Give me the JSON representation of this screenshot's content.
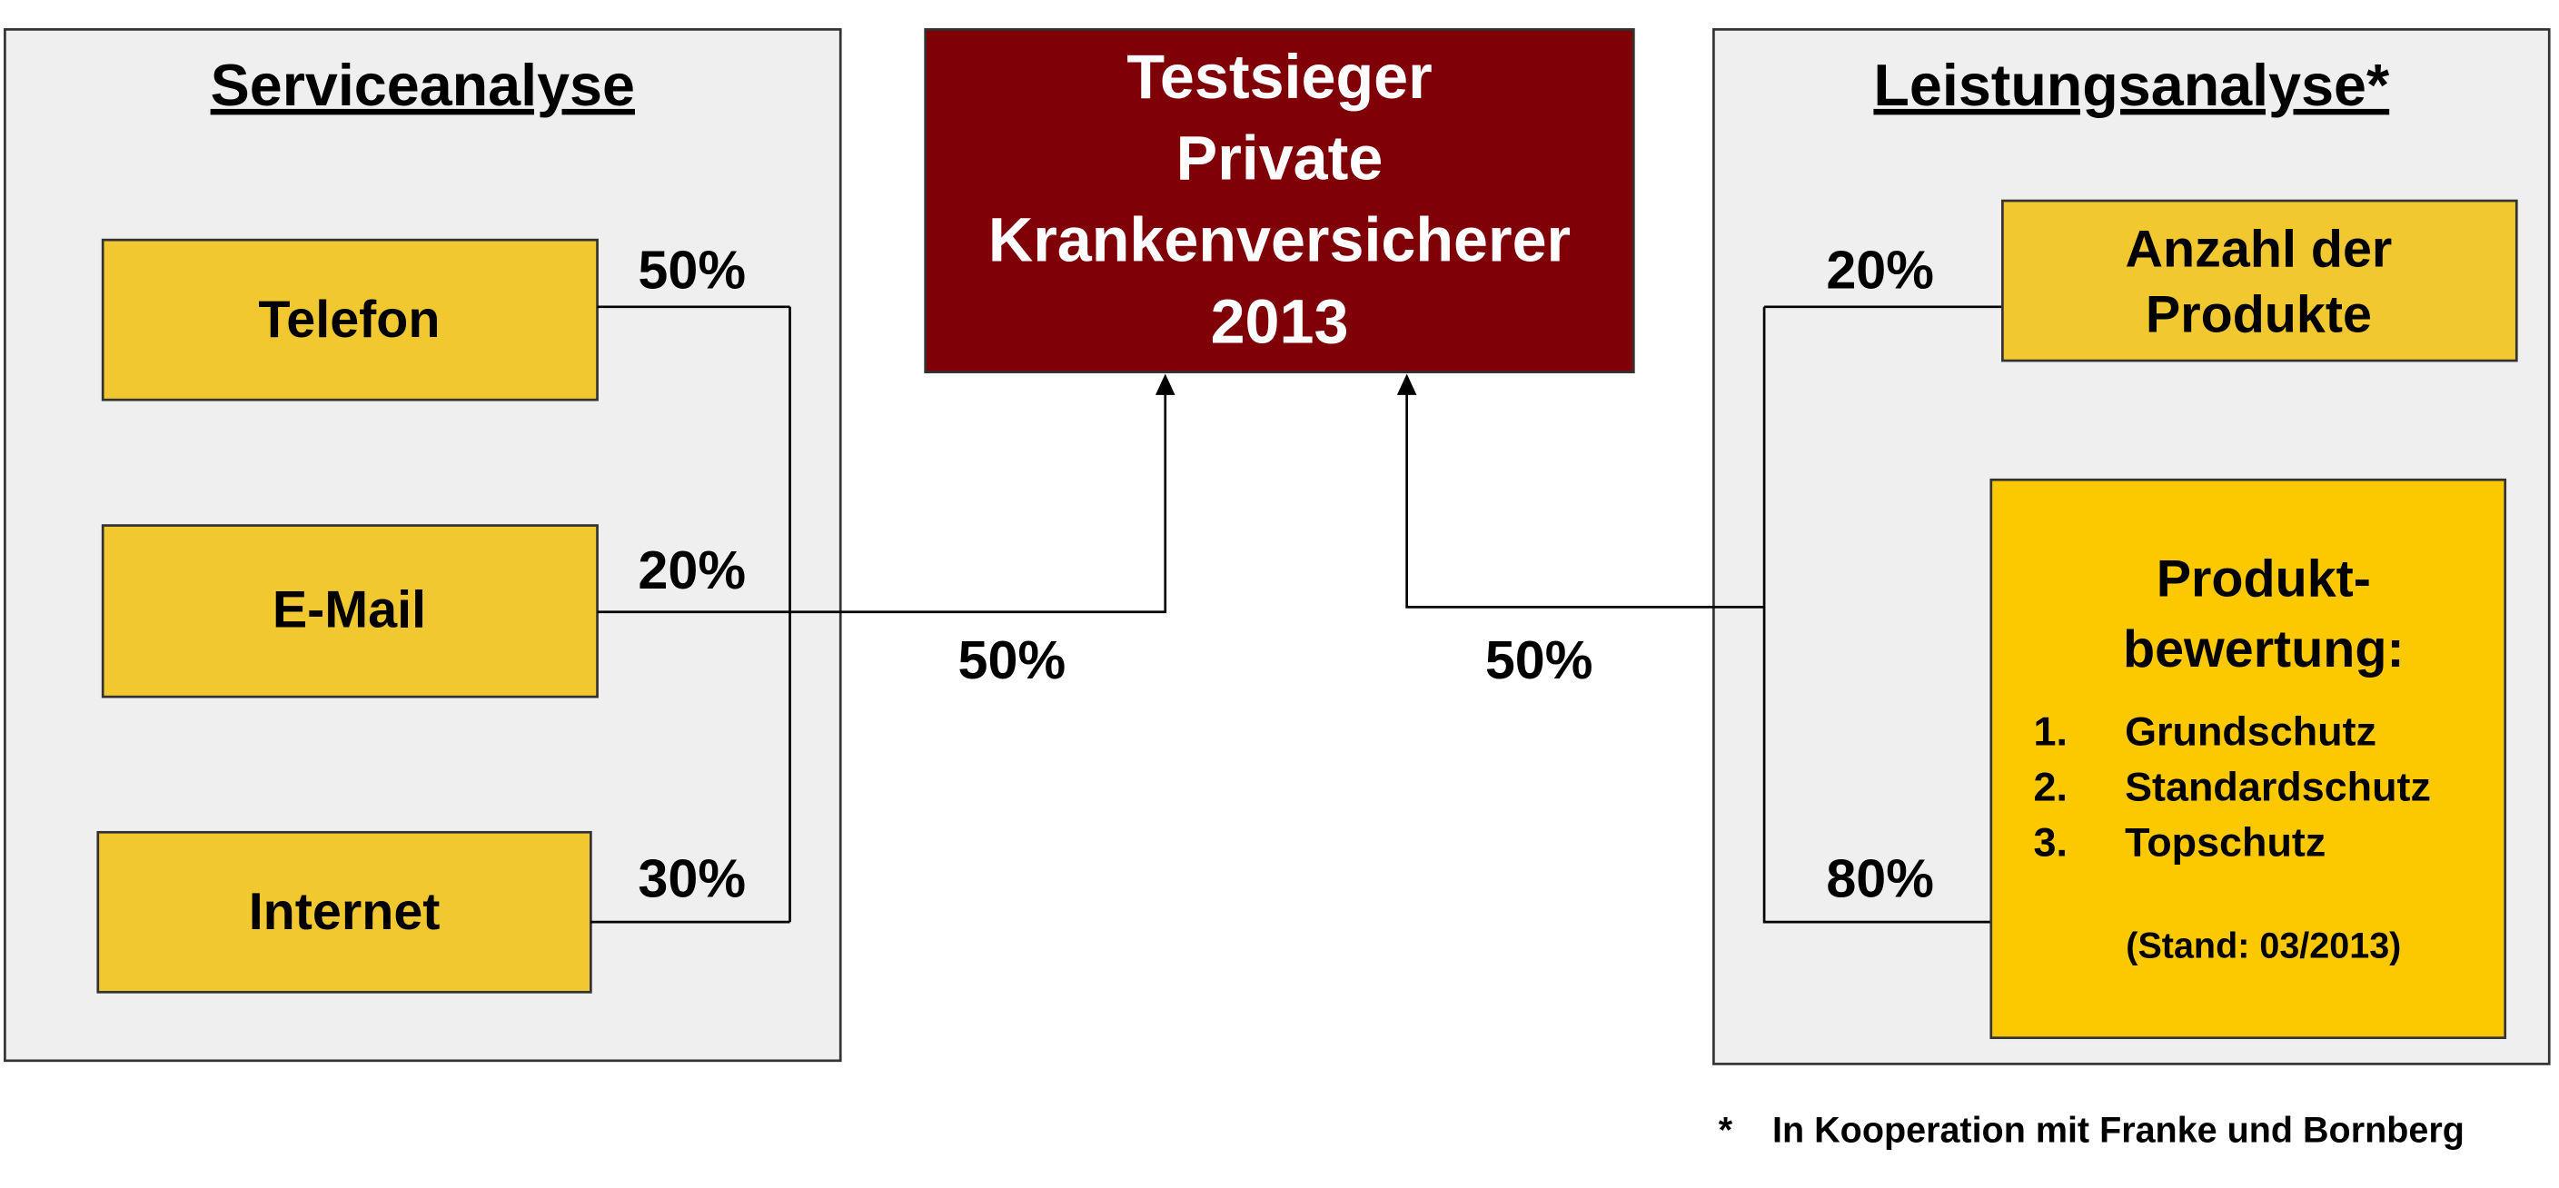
{
  "left_panel": {
    "title": "Serviceanalyse",
    "weight": "50%",
    "items": [
      {
        "label": "Telefon",
        "weight": "50%"
      },
      {
        "label": "E-Mail",
        "weight": "20%"
      },
      {
        "label": "Internet",
        "weight": "30%"
      }
    ]
  },
  "center": {
    "title_lines": [
      "Testsieger",
      "Private",
      "Krankenversicherer",
      "2013"
    ]
  },
  "right_panel": {
    "title": "Leistungsanalyse*",
    "weight": "50%",
    "items": [
      {
        "label_lines": [
          "Anzahl der",
          "Produkte"
        ],
        "weight": "20%"
      },
      {
        "label_lines": [
          "Produkt-",
          "bewertung:"
        ],
        "weight": "80%",
        "list": [
          {
            "number": "1.",
            "text": "Grundschutz"
          },
          {
            "number": "2.",
            "text": "Standardschutz"
          },
          {
            "number": "3.",
            "text": "Topschutz"
          }
        ],
        "note": "(Stand: 03/2013)"
      }
    ]
  },
  "footnote": {
    "marker": "*",
    "text": "In Kooperation mit Franke und Bornberg"
  }
}
